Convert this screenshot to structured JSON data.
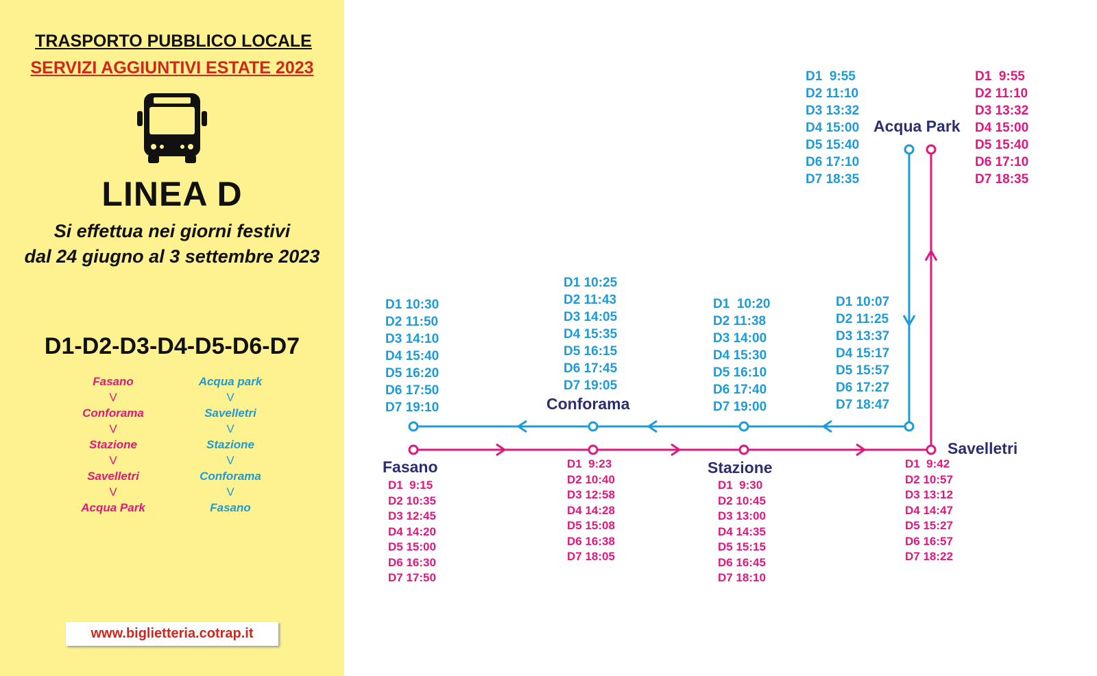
{
  "header": {
    "title": "TRASPORTO PUBBLICO LOCALE",
    "subtitle": "SERVIZI AGGIUNTIVI ESTATE 2023",
    "line": "LINEA D",
    "note1": "Si effettua nei giorni festivi",
    "note2": "dal 24 giugno al 3 settembre 2023",
    "days": "D1-D2-D3-D4-D5-D6-D7"
  },
  "routes": {
    "outbound": [
      "Fasano",
      "V",
      "Conforama",
      "V",
      "Stazione",
      "V",
      "Savelletri",
      "V",
      "Acqua Park"
    ],
    "return": [
      "Acqua park",
      "V",
      "Savelletri",
      "V",
      "Stazione",
      "V",
      "Conforama",
      "V",
      "Fasano"
    ]
  },
  "website": "www.biglietteria.cotrap.it",
  "colors": {
    "background": "#fef18f",
    "return_line": "#1c9bd7",
    "outbound_line": "#e0177f",
    "stop_label": "#2b2e73",
    "accent": "#d0261c"
  },
  "icons": [
    "bus-icon"
  ],
  "stops": {
    "fasano": "Fasano",
    "conforama": "Conforama",
    "stazione": "Stazione",
    "savelletri": "Savelletri",
    "acquapark": "Acqua Park"
  },
  "return_times": {
    "acquapark": [
      "D1  9:55",
      "D2 11:10",
      "D3 13:32",
      "D4 15:00",
      "D5 15:40",
      "D6 17:10",
      "D7 18:35"
    ],
    "savelletri": [
      "D1 10:07",
      "D2 11:25",
      "D3 13:37",
      "D4 15:17",
      "D5 15:57",
      "D6 17:27",
      "D7 18:47"
    ],
    "stazione": [
      "D1  10:20",
      "D2 11:38",
      "D3 14:00",
      "D4 15:30",
      "D5 16:10",
      "D6 17:40",
      "D7 19:00"
    ],
    "conforama": [
      "D1 10:25",
      "D2 11:43",
      "D3 14:05",
      "D4 15:35",
      "D5 16:15",
      "D6 17:45",
      "D7 19:05"
    ],
    "fasano": [
      "D1 10:30",
      "D2 11:50",
      "D3 14:10",
      "D4 15:40",
      "D5 16:20",
      "D6 17:50",
      "D7 19:10"
    ]
  },
  "outbound_times": {
    "fasano": [
      "D1  9:15",
      "D2 10:35",
      "D3 12:45",
      "D4 14:20",
      "D5 15:00",
      "D6 16:30",
      "D7 17:50"
    ],
    "conforama": [
      "D1  9:23",
      "D2 10:40",
      "D3 12:58",
      "D4 14:28",
      "D5 15:08",
      "D6 16:38",
      "D7 18:05"
    ],
    "stazione": [
      "D1  9:30",
      "D2 10:45",
      "D3 13:00",
      "D4 14:35",
      "D5 15:15",
      "D6 16:45",
      "D7 18:10"
    ],
    "savelletri": [
      "D1  9:42",
      "D2 10:57",
      "D3 13:12",
      "D4 14:47",
      "D5 15:27",
      "D6 16:57",
      "D7 18:22"
    ],
    "acquapark": [
      "D1  9:55",
      "D2 11:10",
      "D3 13:32",
      "D4 15:00",
      "D5 15:40",
      "D6 17:10",
      "D7 18:35"
    ]
  }
}
